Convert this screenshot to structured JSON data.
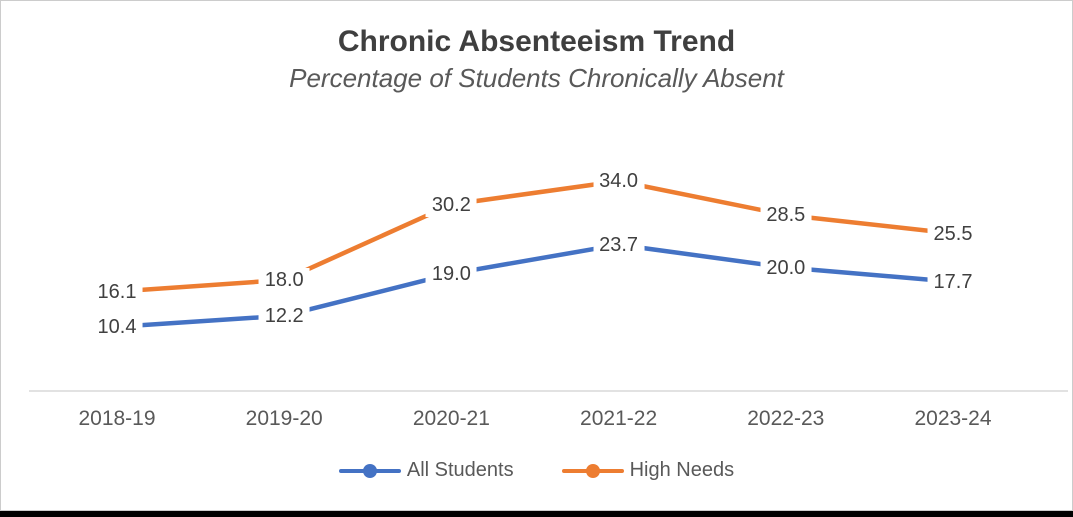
{
  "frame": {
    "background": "#ffffff",
    "border_color": "#cccccc",
    "bottom_bar_color": "#000000"
  },
  "chart_data": {
    "type": "line",
    "title": "Chronic Absenteeism Trend",
    "subtitle": "Percentage of Students Chronically Absent",
    "categories": [
      "2018-19",
      "2019-20",
      "2020-21",
      "2021-22",
      "2022-23",
      "2023-24"
    ],
    "series": [
      {
        "name": "All Students",
        "color": "#4472C4",
        "values": [
          10.4,
          12.2,
          19.0,
          23.7,
          20.0,
          17.7
        ]
      },
      {
        "name": "High Needs",
        "color": "#ED7D31",
        "values": [
          16.1,
          18.0,
          30.2,
          34.0,
          28.5,
          25.5
        ]
      }
    ],
    "ylim": [
      0,
      40
    ],
    "grid": false,
    "y_axis_shown": false,
    "legend_position": "bottom",
    "data_labels": "centered-on-points-with-white-fill",
    "axis_line_color": "#d9d9d9",
    "data_label_color": "#404040",
    "axis_text_color": "#595959",
    "title_color": "#3f3f3f",
    "subtitle_color": "#595959"
  }
}
